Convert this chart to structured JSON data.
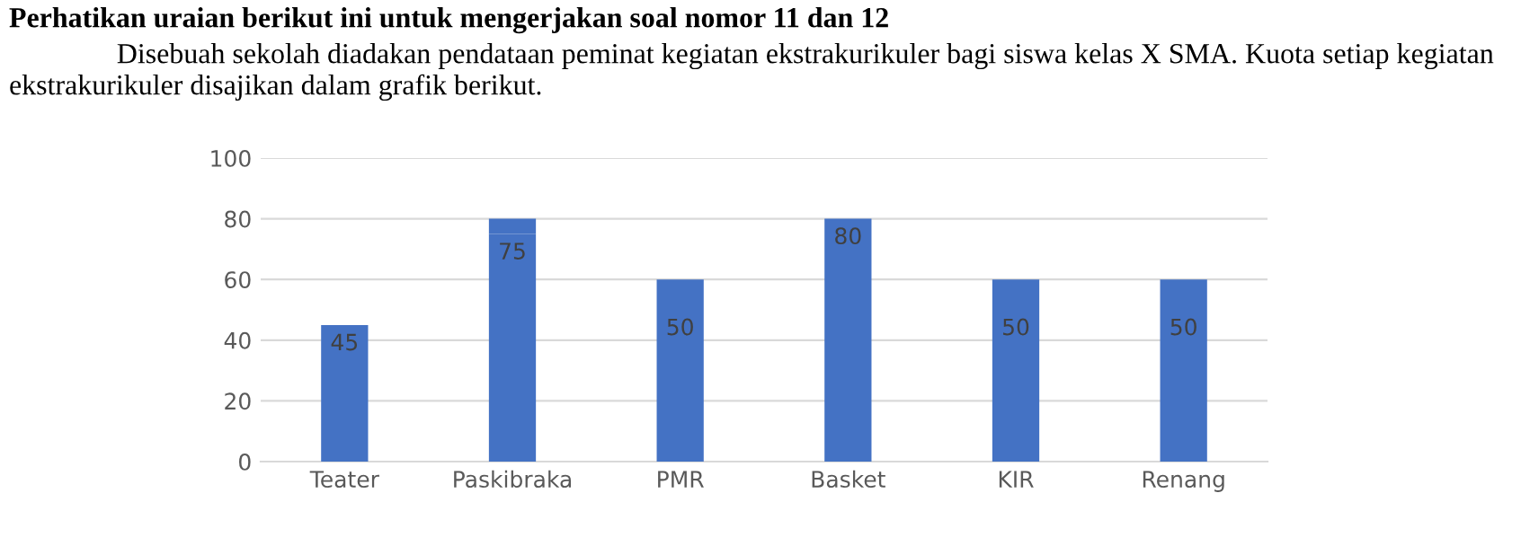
{
  "chart_data": {
    "type": "bar",
    "title": "Perhatikan uraian berikut ini untuk mengerjakan soal nomor 11 dan 12",
    "subtitle": "Disebuah sekolah diadakan pendataan peminat kegiatan ekstrakurikuler bagi siswa kelas X SMA. Kuota setiap kegiatan ekstrakurikuler disajikan dalam grafik berikut.",
    "categories": [
      "Teater",
      "Paskibraka",
      "PMR",
      "Basket",
      "KIR",
      "Renang"
    ],
    "stacked": true,
    "series": [
      {
        "color": "#4472c4",
        "values": [
          45,
          75,
          50,
          80,
          50,
          50
        ],
        "value_labels": [
          "45",
          "75",
          "50",
          "80",
          "50",
          "50"
        ]
      },
      {
        "color": "#4472c4",
        "values": [
          null,
          5,
          10,
          null,
          10,
          10
        ]
      }
    ],
    "ylim": [
      0,
      100
    ],
    "yticks": [
      0,
      20,
      40,
      60,
      80,
      100
    ],
    "grid": "y"
  }
}
